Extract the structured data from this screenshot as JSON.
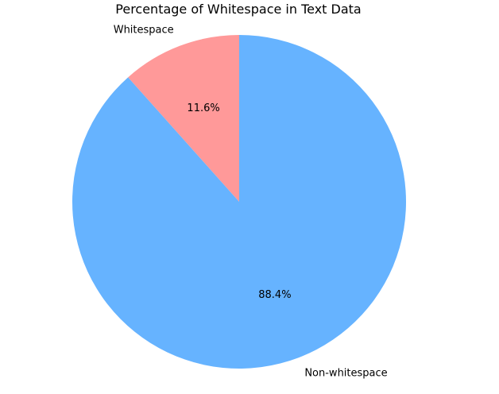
{
  "chart_data": {
    "type": "pie",
    "title": "Percentage of Whitespace in Text Data",
    "slices": [
      {
        "label": "Whitespace",
        "value": 11.6,
        "pct_label": "11.6%",
        "color": "#ff9999"
      },
      {
        "label": "Non-whitespace",
        "value": 88.4,
        "pct_label": "88.4%",
        "color": "#66b3ff"
      }
    ],
    "start_angle_deg": 90,
    "direction": "counterclockwise",
    "legend": "none"
  }
}
